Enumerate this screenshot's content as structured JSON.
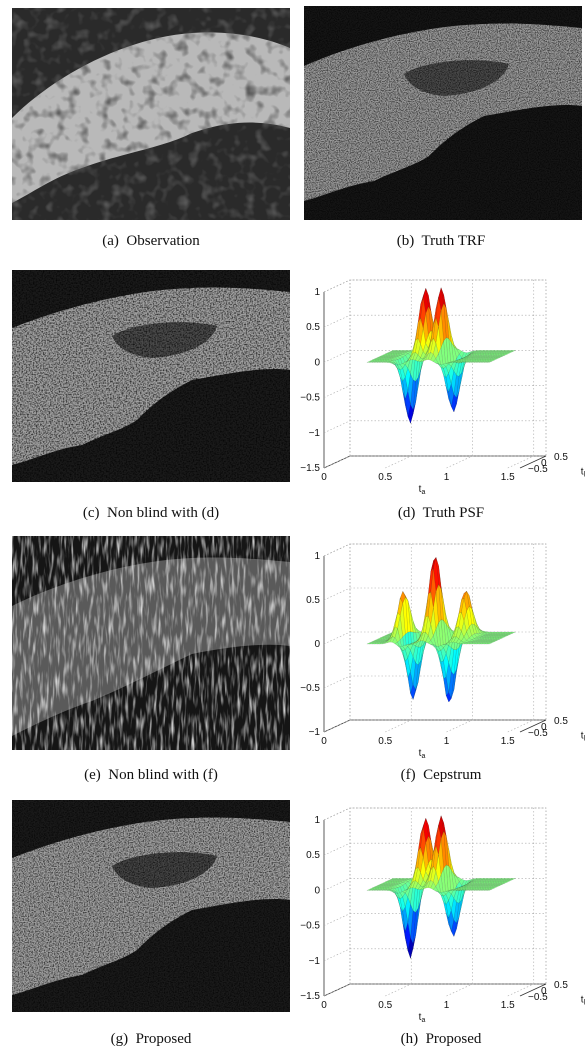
{
  "captions": {
    "a": {
      "label": "(a)",
      "text": "Observation"
    },
    "b": {
      "label": "(b)",
      "text": "Truth TRF"
    },
    "c": {
      "label": "(c)",
      "text": "Non blind with (d)"
    },
    "d": {
      "label": "(d)",
      "text": "Truth PSF"
    },
    "e": {
      "label": "(e)",
      "text": "Non blind with (f)"
    },
    "f": {
      "label": "(f)",
      "text": "Cepstrum"
    },
    "g": {
      "label": "(g)",
      "text": "Proposed"
    },
    "h": {
      "label": "(h)",
      "text": "Proposed"
    }
  },
  "axes": {
    "z_ticks": [
      "1",
      "0.5",
      "0",
      "−0.5",
      "−1",
      "−1.5"
    ],
    "z_ticks_f": [
      "1",
      "0.5",
      "0",
      "−0.5",
      "−1"
    ],
    "x_ticks": [
      "0",
      "0.5",
      "1",
      "1.5"
    ],
    "y_ticks": [
      "−0.5",
      "0",
      "0.5"
    ],
    "x_label_main": "t",
    "x_label_sub": "a",
    "y_label_main": "t",
    "y_label_sub": "l"
  },
  "chart_data": [
    {
      "panel": "d",
      "type": "surface",
      "title": "Truth PSF",
      "xlim": [
        0,
        1.6
      ],
      "ylim": [
        -0.5,
        0.5
      ],
      "zlim": [
        -1.5,
        1
      ],
      "peaks": [
        {
          "t_a": 0.6,
          "z": -0.95
        },
        {
          "t_a": 0.72,
          "z": 0.98
        },
        {
          "t_a": 0.85,
          "z": 0.98
        },
        {
          "t_a": 0.95,
          "z": -0.8
        }
      ]
    },
    {
      "panel": "f",
      "type": "surface",
      "title": "Cepstrum",
      "xlim": [
        0,
        1.6
      ],
      "ylim": [
        -0.5,
        0.5
      ],
      "zlim": [
        -1,
        1
      ],
      "peaks": [
        {
          "t_a": 0.55,
          "z": 0.6
        },
        {
          "t_a": 0.62,
          "z": -0.75
        },
        {
          "t_a": 0.8,
          "z": 0.95
        },
        {
          "t_a": 0.92,
          "z": -0.75
        },
        {
          "t_a": 1.05,
          "z": 0.55
        }
      ]
    },
    {
      "panel": "h",
      "type": "surface",
      "title": "Proposed",
      "xlim": [
        0,
        1.6
      ],
      "ylim": [
        -0.5,
        0.5
      ],
      "zlim": [
        -1.5,
        1
      ],
      "peaks": [
        {
          "t_a": 0.6,
          "z": -1.05
        },
        {
          "t_a": 0.72,
          "z": 0.95
        },
        {
          "t_a": 0.85,
          "z": 0.98
        },
        {
          "t_a": 0.95,
          "z": -0.75
        }
      ]
    }
  ]
}
